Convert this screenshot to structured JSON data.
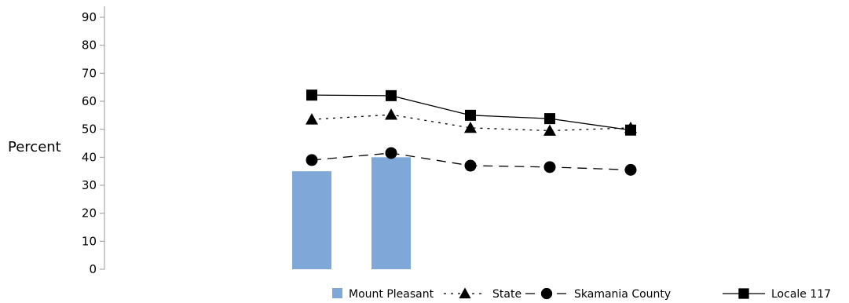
{
  "chart_data": {
    "type": "bar",
    "ylabel": "Percent",
    "ylim": [
      0,
      90
    ],
    "yticks": [
      0,
      10,
      20,
      30,
      40,
      50,
      60,
      70,
      80,
      90
    ],
    "num_points": 5,
    "bar_series": {
      "name": "Mount Pleasant",
      "color": "#7FA7D8",
      "values": [
        35,
        40,
        null,
        null,
        null
      ]
    },
    "line_series": [
      {
        "name": "State",
        "marker": "triangle",
        "dash": "dotted",
        "color": "#000000",
        "values": [
          53.5,
          55.2,
          50.5,
          49.5,
          50.5
        ]
      },
      {
        "name": "Skamania County",
        "marker": "circle",
        "dash": "dashed",
        "color": "#000000",
        "values": [
          39,
          41.5,
          37,
          36.5,
          35.5
        ]
      },
      {
        "name": "Locale 117",
        "marker": "square",
        "dash": "solid",
        "color": "#000000",
        "values": [
          62.2,
          62,
          55,
          53.8,
          49.7
        ]
      }
    ],
    "legend_position": "bottom-right",
    "grid": false
  }
}
